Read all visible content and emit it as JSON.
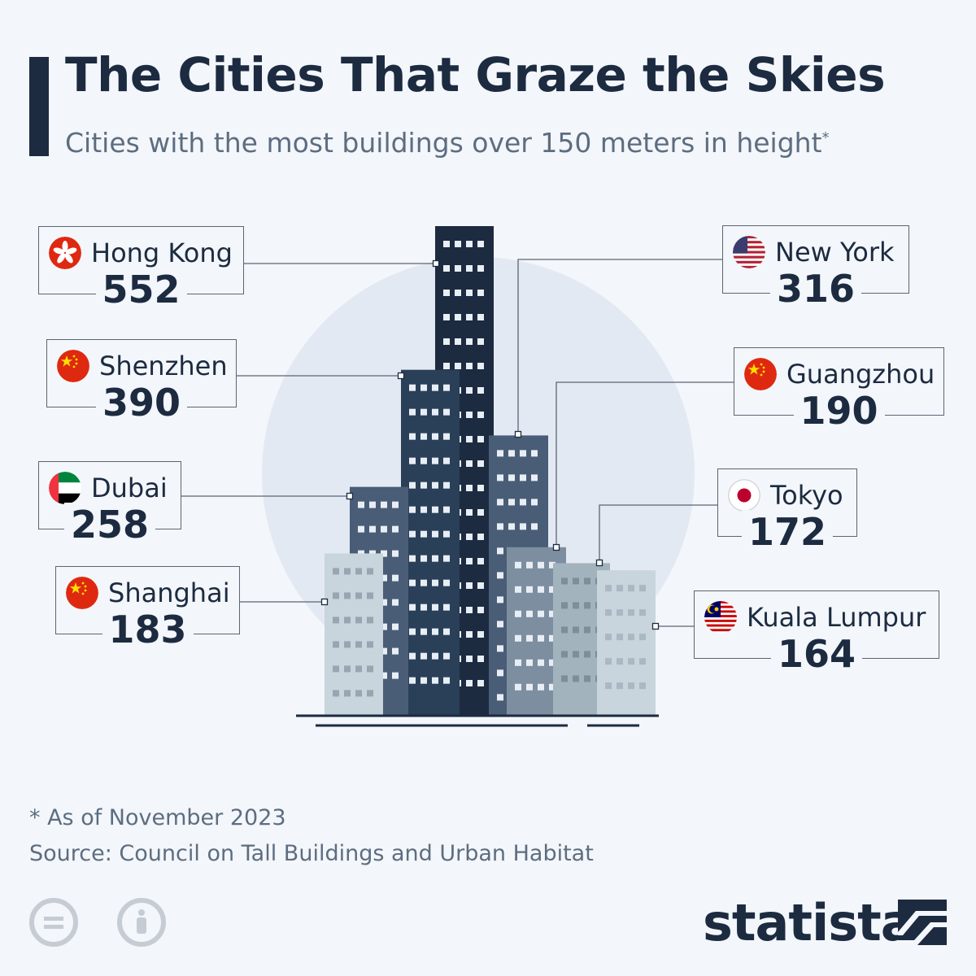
{
  "header": {
    "title": "The Cities That Graze the Skies",
    "subtitle": "Cities with the most buildings over 150 meters in height",
    "subtitle_mark": "*"
  },
  "footer": {
    "footnote": "* As of November 2023",
    "source": "Source: Council on Tall Buildings and Urban Habitat",
    "brand": "statista"
  },
  "colors": {
    "dark_navy": "#1c2b40",
    "navy": "#2a4058",
    "slate": "#4a5d76",
    "grey_blue": "#7d8ea0",
    "light_grey": "#a3b3bd",
    "pale": "#c8d5dc",
    "backdrop_circle": "#e3e9f3"
  },
  "chart_data": {
    "type": "bar",
    "title": "The Cities That Graze the Skies",
    "subtitle": "Cities with the most buildings over 150 meters in height",
    "categories": [
      "Hong Kong",
      "New York",
      "Shenzhen",
      "Dubai",
      "Guangzhou",
      "Shanghai",
      "Tokyo",
      "Kuala Lumpur"
    ],
    "values": [
      552,
      316,
      390,
      258,
      190,
      183,
      172,
      164
    ],
    "unit": "buildings over 150 m",
    "flags": [
      "hong-kong-flag-icon",
      "usa-flag-icon",
      "china-flag-icon",
      "uae-flag-icon",
      "china-flag-icon",
      "china-flag-icon",
      "japan-flag-icon",
      "malaysia-flag-icon"
    ]
  },
  "cities": [
    {
      "name": "Hong Kong",
      "value": "552",
      "flag": "hong-kong-flag-icon"
    },
    {
      "name": "Shenzhen",
      "value": "390",
      "flag": "china-flag-icon"
    },
    {
      "name": "Dubai",
      "value": "258",
      "flag": "uae-flag-icon"
    },
    {
      "name": "Shanghai",
      "value": "183",
      "flag": "china-flag-icon"
    },
    {
      "name": "New York",
      "value": "316",
      "flag": "usa-flag-icon"
    },
    {
      "name": "Guangzhou",
      "value": "190",
      "flag": "china-flag-icon"
    },
    {
      "name": "Tokyo",
      "value": "172",
      "flag": "japan-flag-icon"
    },
    {
      "name": "Kuala Lumpur",
      "value": "164",
      "flag": "malaysia-flag-icon"
    }
  ]
}
